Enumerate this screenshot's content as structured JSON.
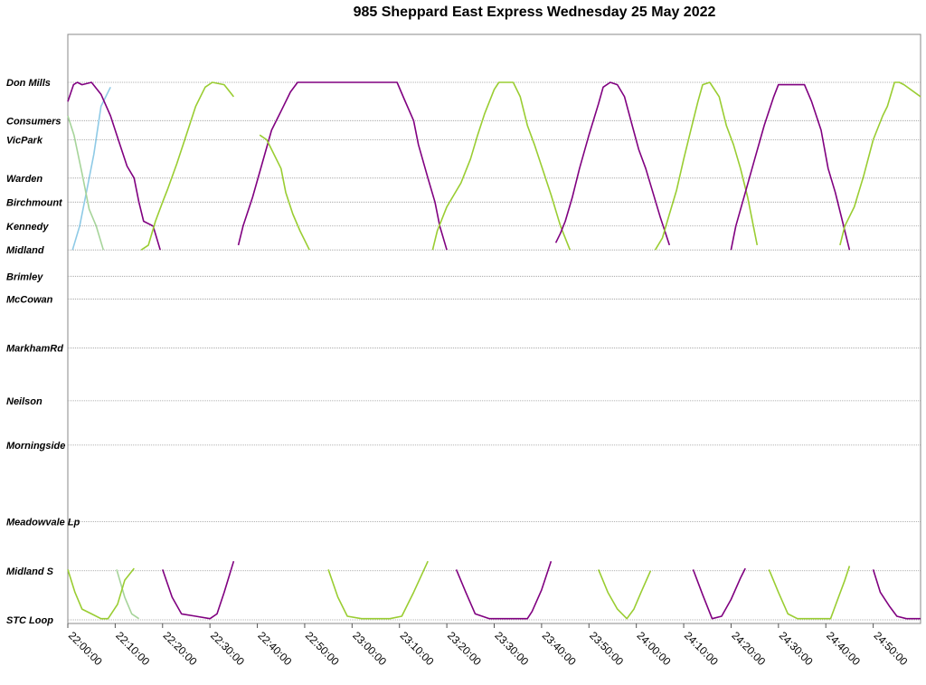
{
  "chart_data": {
    "type": "line",
    "title": "985 Sheppard East Express Wednesday 25 May 2022",
    "x_axis": {
      "ticks": [
        "22:00:00",
        "22:10:00",
        "22:20:00",
        "22:30:00",
        "22:40:00",
        "22:50:00",
        "23:00:00",
        "23:10:00",
        "23:20:00",
        "23:30:00",
        "23:40:00",
        "23:50:00",
        "24:00:00",
        "24:10:00",
        "24:20:00",
        "24:30:00",
        "24:40:00",
        "24:50:00"
      ],
      "range_minutes": [
        0,
        180
      ]
    },
    "y_axis": {
      "stops": [
        {
          "name": "Don Mills",
          "pos": 0
        },
        {
          "name": "Consumers",
          "pos": 1.6
        },
        {
          "name": "VicPark",
          "pos": 2.4
        },
        {
          "name": "Warden",
          "pos": 4.0
        },
        {
          "name": "Birchmount",
          "pos": 5.0
        },
        {
          "name": "Kennedy",
          "pos": 6.0
        },
        {
          "name": "Midland",
          "pos": 7.0
        },
        {
          "name": "Brimley",
          "pos": 8.1
        },
        {
          "name": "McCowan",
          "pos": 9.05
        },
        {
          "name": "MarkhamRd",
          "pos": 11.1
        },
        {
          "name": "Neilson",
          "pos": 13.3
        },
        {
          "name": "Morningside",
          "pos": 15.15
        },
        {
          "name": "Meadowvale Lp",
          "pos": 18.35
        },
        {
          "name": "Midland S",
          "pos": 20.4
        },
        {
          "name": "STC Loop",
          "pos": 22.45
        }
      ]
    },
    "grid": true,
    "legend": "none",
    "series": [
      {
        "color": "#8ecae6",
        "points": [
          [
            1,
            7
          ],
          [
            2.5,
            6
          ],
          [
            4,
            4.5
          ],
          [
            5.5,
            3
          ],
          [
            7,
            1
          ],
          [
            9,
            0.2
          ]
        ]
      },
      {
        "color": "#a6d49a",
        "points": [
          [
            0,
            1.4
          ],
          [
            1.3,
            2.2
          ],
          [
            3,
            3.8
          ],
          [
            4.5,
            5.3
          ],
          [
            6,
            6
          ],
          [
            7.5,
            7
          ]
        ]
      },
      {
        "color": "#a6d49a",
        "points": [
          [
            10.3,
            20.35
          ],
          [
            12,
            21.5
          ],
          [
            13.5,
            22.2
          ],
          [
            15,
            22.4
          ]
        ]
      },
      {
        "color": "#800080",
        "points": [
          [
            0,
            0.8
          ],
          [
            1.2,
            0.1
          ],
          [
            2,
            0
          ],
          [
            3,
            0.1
          ],
          [
            5,
            0
          ],
          [
            7,
            0.5
          ],
          [
            9,
            1.4
          ],
          [
            11,
            2.6
          ],
          [
            12.5,
            3.5
          ],
          [
            14,
            4
          ],
          [
            15,
            5
          ],
          [
            16,
            5.8
          ],
          [
            18,
            6
          ],
          [
            19.5,
            7
          ]
        ]
      },
      {
        "color": "#9acd32",
        "points": [
          [
            0,
            20.35
          ],
          [
            1.5,
            21.3
          ],
          [
            3,
            22
          ],
          [
            5,
            22.2
          ],
          [
            7,
            22.4
          ],
          [
            8.5,
            22.4
          ],
          [
            10.5,
            21.8
          ],
          [
            12,
            20.8
          ],
          [
            14,
            20.3
          ]
        ]
      },
      {
        "color": "#800080",
        "points": [
          [
            20,
            20.35
          ],
          [
            22,
            21.5
          ],
          [
            24,
            22.2
          ],
          [
            27,
            22.3
          ],
          [
            30,
            22.4
          ],
          [
            31.5,
            22.2
          ],
          [
            33,
            21.3
          ],
          [
            35,
            20
          ]
        ]
      },
      {
        "color": "#9acd32",
        "points": [
          [
            15.5,
            7
          ],
          [
            17,
            6.8
          ],
          [
            18.5,
            5.8
          ],
          [
            20,
            5
          ],
          [
            21,
            4.5
          ],
          [
            23,
            3.4
          ],
          [
            25,
            2.2
          ],
          [
            27,
            1
          ],
          [
            29,
            0.2
          ],
          [
            30.5,
            0
          ],
          [
            33,
            0.1
          ],
          [
            35,
            0.6
          ]
        ]
      },
      {
        "color": "#800080",
        "points": [
          [
            36,
            6.8
          ],
          [
            37,
            6
          ],
          [
            39,
            4.8
          ],
          [
            41,
            3.4
          ],
          [
            43,
            2
          ],
          [
            45,
            1.2
          ],
          [
            47,
            0.4
          ],
          [
            48.5,
            0
          ],
          [
            55,
            0
          ],
          [
            61,
            0
          ],
          [
            69.5,
            0
          ],
          [
            71,
            0.7
          ],
          [
            73,
            1.6
          ],
          [
            74,
            2.6
          ],
          [
            76,
            4
          ],
          [
            77.5,
            5
          ],
          [
            78.5,
            6
          ],
          [
            80,
            7
          ]
        ]
      },
      {
        "color": "#9acd32",
        "points": [
          [
            40.5,
            2.2
          ],
          [
            42,
            2.4
          ],
          [
            43,
            2.8
          ],
          [
            45,
            3.6
          ],
          [
            46,
            4.6
          ],
          [
            47.5,
            5.5
          ],
          [
            49,
            6.2
          ],
          [
            51,
            7
          ]
        ]
      },
      {
        "color": "#9acd32",
        "points": [
          [
            55,
            20.35
          ],
          [
            57,
            21.5
          ],
          [
            59,
            22.3
          ],
          [
            62,
            22.4
          ],
          [
            68,
            22.4
          ],
          [
            70.5,
            22.3
          ],
          [
            73,
            21.3
          ],
          [
            76,
            20
          ]
        ]
      },
      {
        "color": "#800080",
        "points": [
          [
            82,
            20.35
          ],
          [
            84,
            21.3
          ],
          [
            86,
            22.2
          ],
          [
            89,
            22.4
          ],
          [
            93,
            22.4
          ],
          [
            97,
            22.4
          ],
          [
            98,
            22.1
          ],
          [
            100,
            21.2
          ],
          [
            102,
            20
          ]
        ]
      },
      {
        "color": "#9acd32",
        "points": [
          [
            77,
            7
          ],
          [
            78,
            6.2
          ],
          [
            80,
            5.2
          ],
          [
            83,
            4.2
          ],
          [
            85,
            3.2
          ],
          [
            86.5,
            2.2
          ],
          [
            88,
            1.3
          ],
          [
            90,
            0.3
          ],
          [
            91,
            0
          ],
          [
            94,
            0
          ],
          [
            95.5,
            0.6
          ],
          [
            97,
            1.8
          ],
          [
            98.5,
            2.6
          ],
          [
            100,
            3.5
          ],
          [
            102,
            4.7
          ],
          [
            104,
            6
          ],
          [
            106,
            7
          ]
        ]
      },
      {
        "color": "#800080",
        "points": [
          [
            103,
            6.7
          ],
          [
            104,
            6.3
          ],
          [
            105,
            5.8
          ],
          [
            106.5,
            4.8
          ],
          [
            108,
            3.6
          ],
          [
            110,
            2.2
          ],
          [
            112,
            0.9
          ],
          [
            113,
            0.2
          ],
          [
            114.5,
            0
          ],
          [
            116,
            0.1
          ],
          [
            117.5,
            0.6
          ],
          [
            119,
            1.7
          ],
          [
            120.5,
            2.8
          ],
          [
            122,
            3.6
          ],
          [
            123.5,
            4.6
          ],
          [
            125,
            5.6
          ],
          [
            127,
            6.8
          ]
        ]
      },
      {
        "color": "#9acd32",
        "points": [
          [
            112,
            20.35
          ],
          [
            114,
            21.3
          ],
          [
            116,
            22
          ],
          [
            118,
            22.4
          ],
          [
            119.5,
            22
          ],
          [
            121,
            21.3
          ],
          [
            123,
            20.4
          ]
        ]
      },
      {
        "color": "#800080",
        "points": [
          [
            132,
            20.35
          ],
          [
            134,
            21.4
          ],
          [
            136,
            22.4
          ],
          [
            138,
            22.3
          ],
          [
            140,
            21.6
          ],
          [
            142,
            20.7
          ],
          [
            143,
            20.3
          ]
        ]
      },
      {
        "color": "#9acd32",
        "points": [
          [
            124,
            7
          ],
          [
            125.5,
            6.5
          ],
          [
            127,
            5.5
          ],
          [
            128.5,
            4.5
          ],
          [
            130,
            3.2
          ],
          [
            131.5,
            2
          ],
          [
            133,
            0.8
          ],
          [
            134,
            0.1
          ],
          [
            135.5,
            0
          ],
          [
            137.5,
            0.6
          ],
          [
            139,
            1.8
          ],
          [
            140.5,
            2.6
          ],
          [
            142,
            3.6
          ],
          [
            143.5,
            4.8
          ],
          [
            145.5,
            6.8
          ]
        ]
      },
      {
        "color": "#800080",
        "points": [
          [
            140,
            7
          ],
          [
            141,
            6
          ],
          [
            143,
            4.6
          ],
          [
            145,
            3.2
          ],
          [
            147,
            1.8
          ],
          [
            149,
            0.6
          ],
          [
            150,
            0.1
          ],
          [
            155.5,
            0.1
          ],
          [
            157,
            0.8
          ],
          [
            159,
            2
          ],
          [
            160.5,
            3.6
          ],
          [
            162,
            4.6
          ],
          [
            163.5,
            5.8
          ],
          [
            165,
            7
          ]
        ]
      },
      {
        "color": "#9acd32",
        "points": [
          [
            148,
            20.35
          ],
          [
            150,
            21.3
          ],
          [
            152,
            22.2
          ],
          [
            154,
            22.4
          ],
          [
            158,
            22.4
          ],
          [
            161,
            22.4
          ],
          [
            162.5,
            21.6
          ],
          [
            164,
            20.8
          ],
          [
            165,
            20.2
          ]
        ]
      },
      {
        "color": "#800080",
        "points": [
          [
            170,
            20.35
          ],
          [
            171.5,
            21.3
          ],
          [
            173.5,
            21.9
          ],
          [
            175,
            22.3
          ],
          [
            177,
            22.4
          ],
          [
            180,
            22.4
          ]
        ]
      },
      {
        "color": "#9acd32",
        "points": [
          [
            163,
            6.8
          ],
          [
            164,
            6
          ],
          [
            166,
            5.2
          ],
          [
            168,
            3.9
          ],
          [
            170,
            2.4
          ],
          [
            172,
            1.4
          ],
          [
            173,
            1
          ],
          [
            174.5,
            0
          ],
          [
            175.5,
            0
          ],
          [
            176.5,
            0.1
          ],
          [
            180,
            0.6
          ]
        ]
      }
    ]
  }
}
